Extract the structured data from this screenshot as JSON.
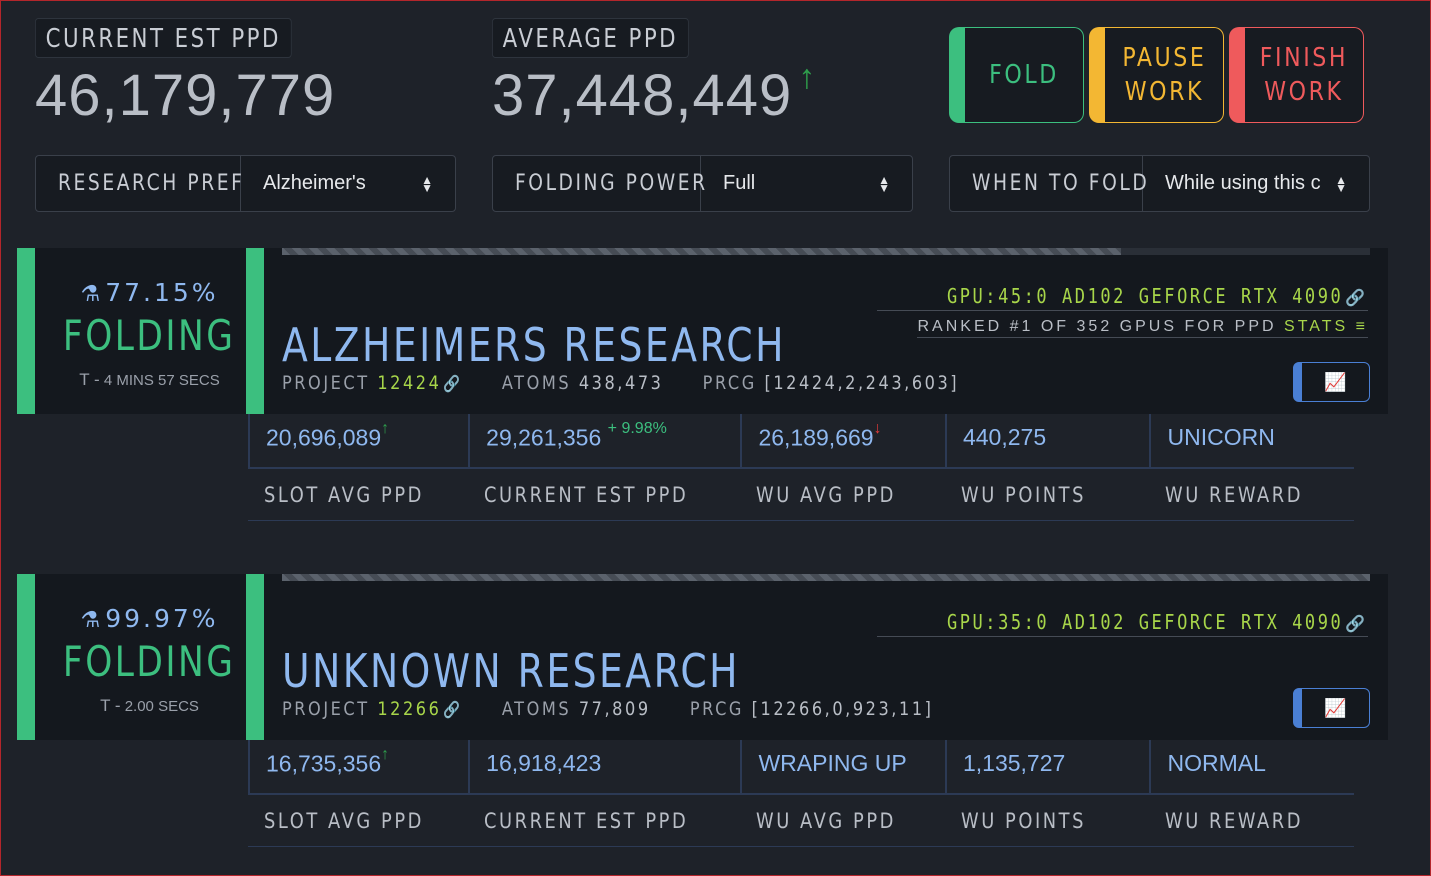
{
  "header": {
    "current_est_ppd_label": "CURRENT EST PPD",
    "current_est_ppd_value": "46,179,779",
    "average_ppd_label": "AVERAGE PPD",
    "average_ppd_value": "37,448,449",
    "average_trend_icon": "↑"
  },
  "actions": {
    "fold": "FOLD",
    "pause": "PAUSE\nWORK",
    "finish": "FINISH\nWORK"
  },
  "selects": {
    "research_pref_label": "RESEARCH PREF",
    "research_pref_value": "Alzheimer's",
    "folding_power_label": "FOLDING POWER",
    "folding_power_value": "Full",
    "when_to_fold_label": "WHEN TO FOLD",
    "when_to_fold_value": "While using this c"
  },
  "colors": {
    "fold": "#3cbf7f",
    "pause": "#f3b733",
    "finish": "#ef5a5c",
    "accent_blue": "#8fb8ef",
    "accent_green": "#a8d64a"
  },
  "slots": [
    {
      "progress_pct_text": "77.15%",
      "progress_fraction": 0.7715,
      "status": "FOLDING",
      "eta_prefix": "T -",
      "eta": "4 MINS 57 SECS",
      "gpu": "GPU:45:0 AD102 GEFORCE RTX 4090",
      "rank_text": "RANKED #1 OF 352 GPUS FOR PPD",
      "stats_link": "STATS",
      "title": "ALZHEIMERS RESEARCH",
      "project_label": "PROJECT",
      "project": "12424",
      "atoms_label": "ATOMS",
      "atoms": "438,473",
      "prcg_label": "PRCG",
      "prcg": "[12424,2,243,603]",
      "cells": [
        {
          "value": "20,696,089",
          "badge": "↑",
          "label": "SLOT AVG PPD"
        },
        {
          "value": "29,261,356",
          "badge": "+ 9.98%",
          "label": "CURRENT EST PPD"
        },
        {
          "value": "26,189,669",
          "badge": "↓",
          "label": "WU AVG PPD"
        },
        {
          "value": "440,275",
          "badge": "",
          "label": "WU POINTS"
        },
        {
          "value": "UNICORN",
          "badge": "",
          "label": "WU REWARD"
        }
      ]
    },
    {
      "progress_pct_text": "99.97%",
      "progress_fraction": 0.9997,
      "status": "FOLDING",
      "eta_prefix": "T -",
      "eta": "2.00 SECS",
      "gpu": "GPU:35:0 AD102 GEFORCE RTX 4090",
      "title": "UNKNOWN RESEARCH",
      "project_label": "PROJECT",
      "project": "12266",
      "atoms_label": "ATOMS",
      "atoms": "77,809",
      "prcg_label": "PRCG",
      "prcg": "[12266,0,923,11]",
      "cells": [
        {
          "value": "16,735,356",
          "badge": "↑",
          "label": "SLOT AVG PPD"
        },
        {
          "value": "16,918,423",
          "badge": "",
          "label": "CURRENT EST PPD"
        },
        {
          "value": "WRAPING UP",
          "badge": "",
          "label": "WU AVG PPD"
        },
        {
          "value": "1,135,727",
          "badge": "",
          "label": "WU POINTS"
        },
        {
          "value": "NORMAL",
          "badge": "",
          "label": "WU REWARD"
        }
      ]
    }
  ]
}
